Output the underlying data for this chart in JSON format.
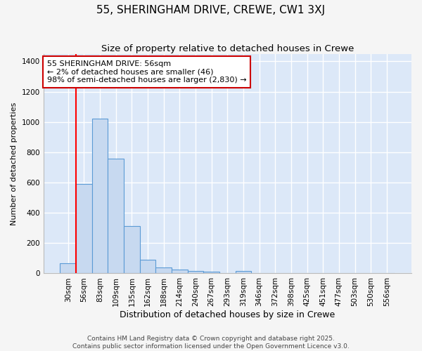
{
  "title": "55, SHERINGHAM DRIVE, CREWE, CW1 3XJ",
  "subtitle": "Size of property relative to detached houses in Crewe",
  "xlabel": "Distribution of detached houses by size in Crewe",
  "ylabel": "Number of detached properties",
  "categories": [
    "30sqm",
    "56sqm",
    "83sqm",
    "109sqm",
    "135sqm",
    "162sqm",
    "188sqm",
    "214sqm",
    "240sqm",
    "267sqm",
    "293sqm",
    "319sqm",
    "346sqm",
    "372sqm",
    "398sqm",
    "425sqm",
    "451sqm",
    "477sqm",
    "503sqm",
    "530sqm",
    "556sqm"
  ],
  "values": [
    65,
    590,
    1020,
    760,
    315,
    90,
    40,
    25,
    15,
    10,
    0,
    15,
    0,
    0,
    0,
    0,
    0,
    0,
    0,
    0,
    0
  ],
  "bar_color": "#c7d9f0",
  "bar_edge_color": "#5b9bd5",
  "annotation_line1": "55 SHERINGHAM DRIVE: 56sqm",
  "annotation_line2": "← 2% of detached houses are smaller (46)",
  "annotation_line3": "98% of semi-detached houses are larger (2,830) →",
  "annotation_box_color": "#ffffff",
  "annotation_box_edge": "#cc0000",
  "ylim": [
    0,
    1450
  ],
  "yticks": [
    0,
    200,
    400,
    600,
    800,
    1000,
    1200,
    1400
  ],
  "plot_background_color": "#dce8f8",
  "figure_background_color": "#f5f5f5",
  "grid_color": "#ffffff",
  "footer_line1": "Contains HM Land Registry data © Crown copyright and database right 2025.",
  "footer_line2": "Contains public sector information licensed under the Open Government Licence v3.0.",
  "title_fontsize": 11,
  "subtitle_fontsize": 9.5,
  "ylabel_fontsize": 8,
  "xlabel_fontsize": 9,
  "tick_fontsize": 7.5,
  "annotation_fontsize": 8,
  "footer_fontsize": 6.5
}
